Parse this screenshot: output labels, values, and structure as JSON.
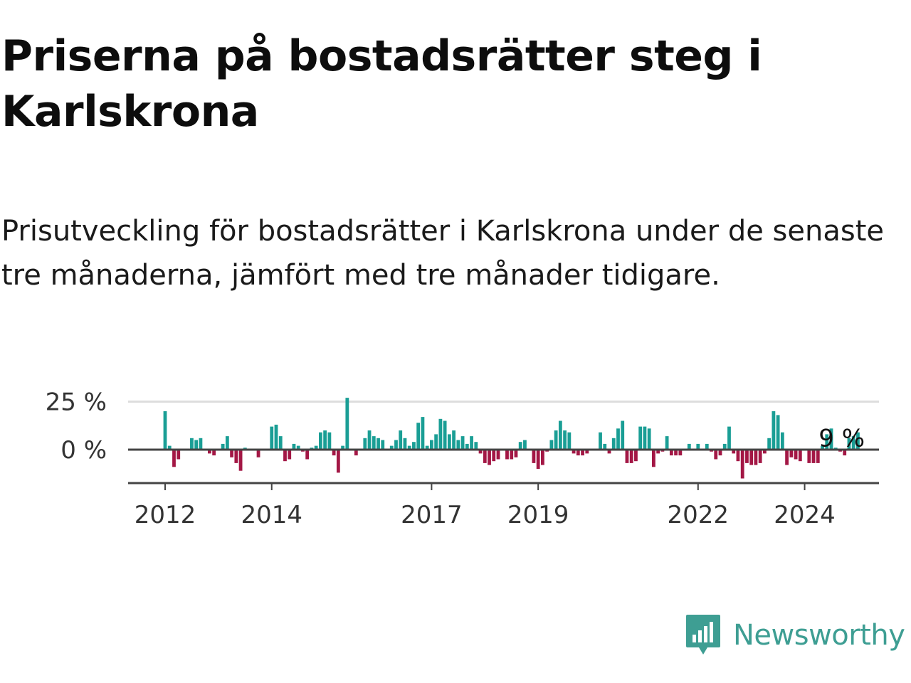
{
  "title": "Priserna på bostadsrätter steg i Karlskrona",
  "subtitle": "Prisutveckling för bostadsrätter i Karlskrona under de senaste tre månaderna, jämfört med tre månader tidigare.",
  "logo": {
    "name": "Newsworthy",
    "icon": "newsworthy-logo-icon"
  },
  "colors": {
    "positive": "#1a9e95",
    "negative": "#a31745",
    "gridline": "#dddddd",
    "axis": "#444444",
    "logo": "#3e9e93"
  },
  "chart_data": {
    "type": "bar",
    "title": "",
    "xlabel": "",
    "ylabel": "",
    "start": "2012-01",
    "x_ticks": [
      "2012",
      "2014",
      "2017",
      "2019",
      "2022",
      "2024"
    ],
    "y_ticks": [
      {
        "value": 0,
        "label": "0 %"
      },
      {
        "value": 25,
        "label": "25 %"
      }
    ],
    "ylim": [
      -18,
      27
    ],
    "last_value_label": "9 %",
    "grid": true,
    "legend": "none",
    "values": [
      20,
      2,
      -9,
      -5,
      0,
      0,
      6,
      5,
      6,
      0,
      -2,
      -3,
      0,
      3,
      7,
      -4,
      -7,
      -11,
      1,
      0,
      0,
      -4,
      0,
      0,
      12,
      13,
      7,
      -6,
      -5,
      3,
      2,
      -1,
      -5,
      1,
      2,
      9,
      10,
      9,
      -3,
      -12,
      2,
      27,
      0,
      -3,
      0,
      6,
      10,
      7,
      6,
      5,
      0,
      2,
      5,
      10,
      6,
      2,
      4,
      14,
      17,
      2,
      5,
      8,
      16,
      15,
      8,
      10,
      5,
      7,
      3,
      7,
      4,
      -2,
      -7,
      -8,
      -6,
      -5,
      0,
      -5,
      -5,
      -4,
      4,
      5,
      0,
      -7,
      -10,
      -8,
      -1,
      5,
      10,
      15,
      10,
      9,
      -2,
      -3,
      -3,
      -2,
      0,
      0,
      9,
      3,
      -2,
      6,
      11,
      15,
      -7,
      -7,
      -6,
      12,
      12,
      11,
      -9,
      -2,
      -1,
      7,
      -3,
      -3,
      -3,
      0,
      3,
      0,
      3,
      0,
      3,
      -1,
      -5,
      -3,
      3,
      12,
      -2,
      -6,
      -15,
      -7,
      -8,
      -8,
      -7,
      -2,
      6,
      20,
      18,
      9,
      -8,
      -4,
      -5,
      -6,
      0,
      -7,
      -7,
      -7,
      2,
      8,
      11,
      1,
      -1,
      -3,
      6,
      7,
      9
    ]
  }
}
